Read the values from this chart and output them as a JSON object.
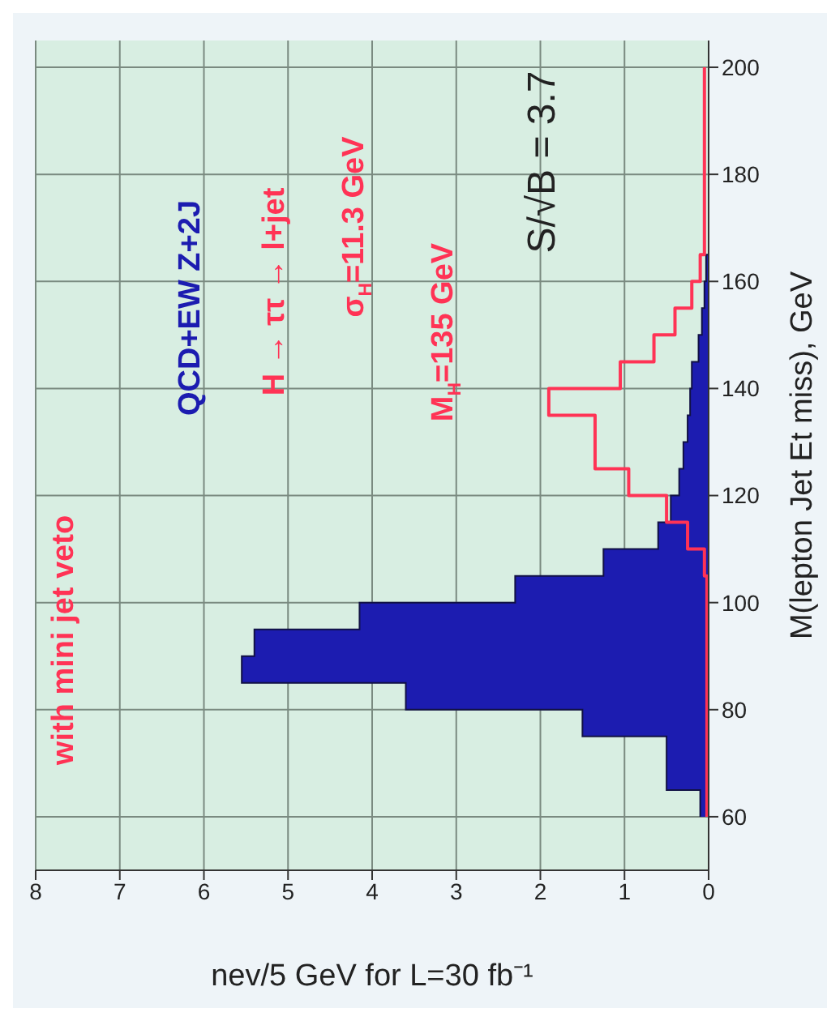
{
  "chart_data": {
    "type": "histogram",
    "orientation": "horizontal",
    "xlabel": "nev/5 GeV for L=30 fb⁻¹",
    "ylabel": "M(lepton Jet Et miss), GeV",
    "bins": [
      60,
      65,
      70,
      75,
      80,
      85,
      90,
      95,
      100,
      105,
      110,
      115,
      120,
      125,
      130,
      135,
      140,
      145,
      150,
      155,
      160,
      165,
      170,
      175,
      180,
      185,
      190,
      195,
      200
    ],
    "series": [
      {
        "name": "QCD+EW Z+2J",
        "color": "#1c1cb0",
        "values": [
          0.1,
          0.5,
          0.5,
          1.5,
          3.6,
          5.55,
          5.4,
          4.15,
          2.3,
          1.25,
          0.6,
          0.45,
          0.35,
          0.3,
          0.25,
          0.22,
          0.2,
          0.12,
          0.08,
          0.05,
          0.03,
          0,
          0,
          0,
          0,
          0,
          0,
          0
        ]
      },
      {
        "name": "H → ττ → l+jet",
        "color": "#ff3355",
        "values": [
          0.02,
          0.02,
          0.02,
          0.02,
          0.02,
          0.02,
          0.02,
          0.02,
          0.02,
          0.05,
          0.25,
          0.5,
          0.95,
          1.35,
          1.35,
          1.9,
          1.05,
          0.65,
          0.4,
          0.2,
          0.1,
          0.05,
          0.05,
          0.05,
          0.05,
          0.05,
          0.05,
          0.05
        ]
      }
    ],
    "annotations": [
      "with mini jet veto",
      "σ$_{H}$=11.3 GeV",
      "M$_{H}$=135 GeV",
      "S/√B = 3.7"
    ],
    "xlim": [
      8,
      0
    ],
    "xticks": [
      0,
      1,
      2,
      3,
      4,
      5,
      6,
      7,
      8
    ],
    "ylim": [
      50,
      205
    ],
    "yticks": [
      60,
      80,
      100,
      120,
      140,
      160,
      180,
      200
    ],
    "grid": true,
    "legend": "top left"
  }
}
